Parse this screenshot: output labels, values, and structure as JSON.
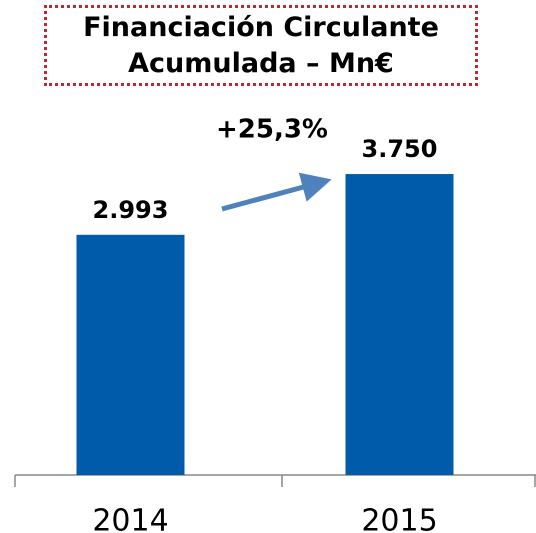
{
  "chart_data": {
    "type": "bar",
    "title": "Financiación Circulante Acumulada – Mn€",
    "annotation": "+25,3%",
    "categories": [
      "2014",
      "2015"
    ],
    "values": [
      2993,
      3750
    ],
    "value_labels": [
      "2.993",
      "3.750"
    ],
    "color": "#005bab",
    "ylim": [
      0,
      4000
    ],
    "grid": false
  }
}
